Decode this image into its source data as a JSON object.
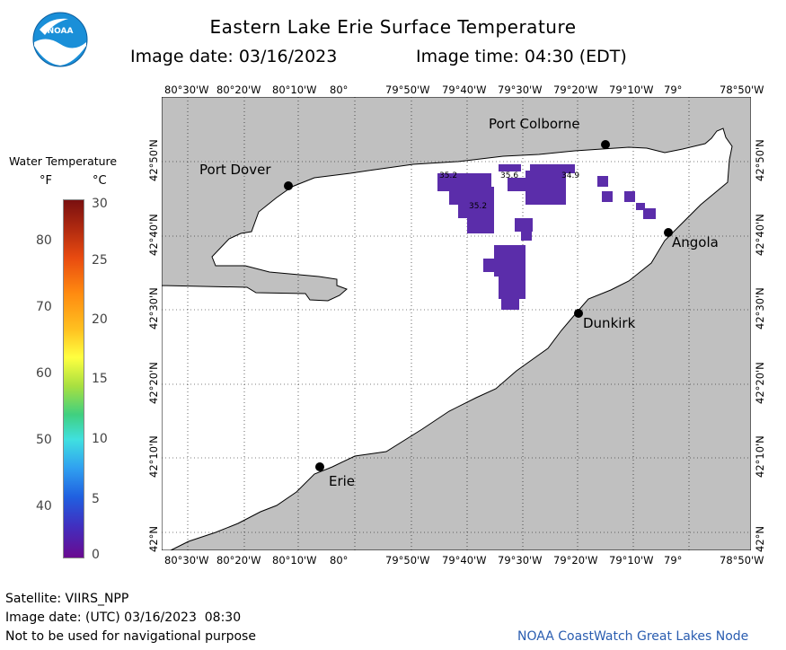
{
  "header": {
    "logo_text": "NOAA",
    "title": "Eastern Lake Erie Surface Temperature",
    "subtitle_date": "Image date: 03/16/2023",
    "subtitle_time": "Image time: 04:30 (EDT)"
  },
  "legend": {
    "title": "Water Temperature",
    "unit_f": "°F",
    "unit_c": "°C",
    "f_ticks": [
      "80",
      "70",
      "60",
      "50",
      "40"
    ],
    "c_ticks": [
      "30",
      "25",
      "20",
      "15",
      "10",
      "5",
      "0"
    ]
  },
  "axes": {
    "lon_top": [
      "80°30'W",
      "80°20'W",
      "80°10'W",
      "80°",
      "79°50'W",
      "79°40'W",
      "79°30'W",
      "79°20'W",
      "79°10'W",
      "79°",
      "78°50'W"
    ],
    "lon_bottom": [
      "80°30'W",
      "80°20'W",
      "80°10'W",
      "80°",
      "79°50'W",
      "79°40'W",
      "79°30'W",
      "79°20'W",
      "79°10'W",
      "79°",
      "78°50'W"
    ],
    "lat_left": [
      "42°50'N",
      "42°40'N",
      "42°30'N",
      "42°20'N",
      "42°10'N",
      "42°N"
    ],
    "lat_right": [
      "42°50'N",
      "42°40'N",
      "42°30'N",
      "42°20'N",
      "42°10'N",
      "42°N"
    ]
  },
  "cities": [
    {
      "name": "Port Colborne"
    },
    {
      "name": "Port Dover"
    },
    {
      "name": "Angola"
    },
    {
      "name": "Dunkirk"
    },
    {
      "name": "Erie"
    }
  ],
  "temp_labels": [
    "35.2",
    "35.6",
    "34.9",
    "35.2"
  ],
  "colors": {
    "land": "#c0c0c0",
    "water": "#ffffff",
    "cold_water": "#5b2daa",
    "noaa_blue": "#1a8fd8",
    "credit": "#2a5db0"
  },
  "footer": {
    "satellite": "Satellite: VIIRS_NPP",
    "utc_date": "Image date: (UTC) 03/16/2023  08:30",
    "disclaimer": "Not to be used for navigational purpose",
    "credit": "NOAA CoastWatch Great Lakes Node"
  }
}
